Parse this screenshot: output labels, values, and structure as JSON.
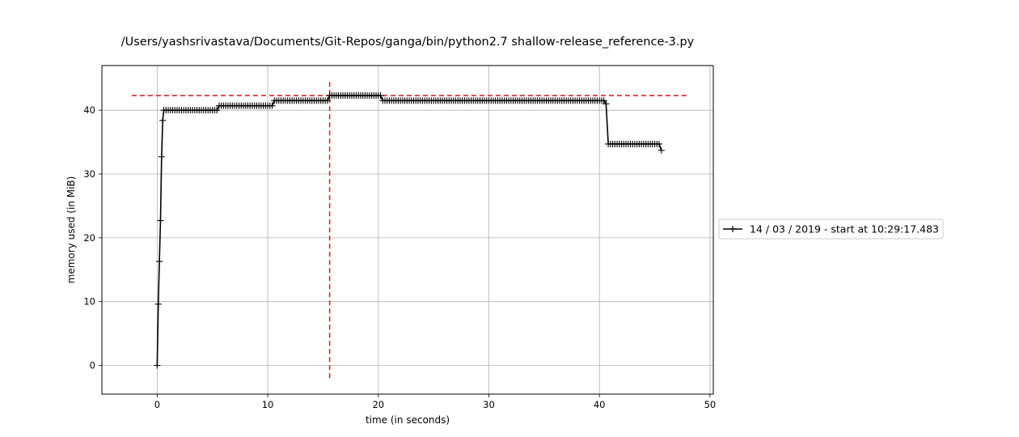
{
  "chart_data": {
    "type": "line",
    "title": "/Users/yashsrivastava/Documents/Git-Repos/ganga/bin/python2.7 shallow-release_reference-3.py",
    "xlabel": "time (in seconds)",
    "ylabel": "memory used (in MiB)",
    "xlim": [
      -5,
      50.3
    ],
    "ylim": [
      -4.5,
      47.0
    ],
    "xticks": [
      0,
      10,
      20,
      30,
      40,
      50
    ],
    "yticks": [
      0,
      10,
      20,
      30,
      40
    ],
    "grid": true,
    "legend_position": "outside right",
    "series": [
      {
        "name": "14 / 03 / 2019 - start at 10:29:17.483",
        "color": "#000000",
        "marker": "+",
        "segments": [
          {
            "x": [
              0.0,
              0.1,
              0.2,
              0.3,
              0.4,
              0.5
            ],
            "y": [
              0.0,
              9.6,
              16.3,
              22.7,
              32.7,
              38.4
            ]
          },
          {
            "x_start": 0.6,
            "x_end": 5.4,
            "step": 0.2,
            "y": 40.0
          },
          {
            "x_start": 5.6,
            "x_end": 10.4,
            "step": 0.2,
            "y": 40.7
          },
          {
            "x_start": 10.6,
            "x_end": 15.4,
            "step": 0.2,
            "y": 41.5
          },
          {
            "x_start": 15.6,
            "x_end": 20.2,
            "step": 0.2,
            "y": 42.3
          },
          {
            "x_start": 20.4,
            "x_end": 40.4,
            "step": 0.2,
            "y": 41.5
          },
          {
            "x": [
              40.6
            ],
            "y": [
              41.0
            ]
          },
          {
            "x_start": 40.8,
            "x_end": 45.4,
            "step": 0.2,
            "y": 34.7
          },
          {
            "x": [
              45.6
            ],
            "y": [
              33.7
            ]
          }
        ]
      }
    ],
    "annotations": {
      "color": "#d62728",
      "max_memory_line": {
        "y": 42.3,
        "x_from": -2.3,
        "x_to": 48.0,
        "style": "dashed"
      },
      "max_time_line": {
        "x": 15.6,
        "y_from": -2.0,
        "y_to": 44.5,
        "style": "dashed"
      }
    }
  }
}
